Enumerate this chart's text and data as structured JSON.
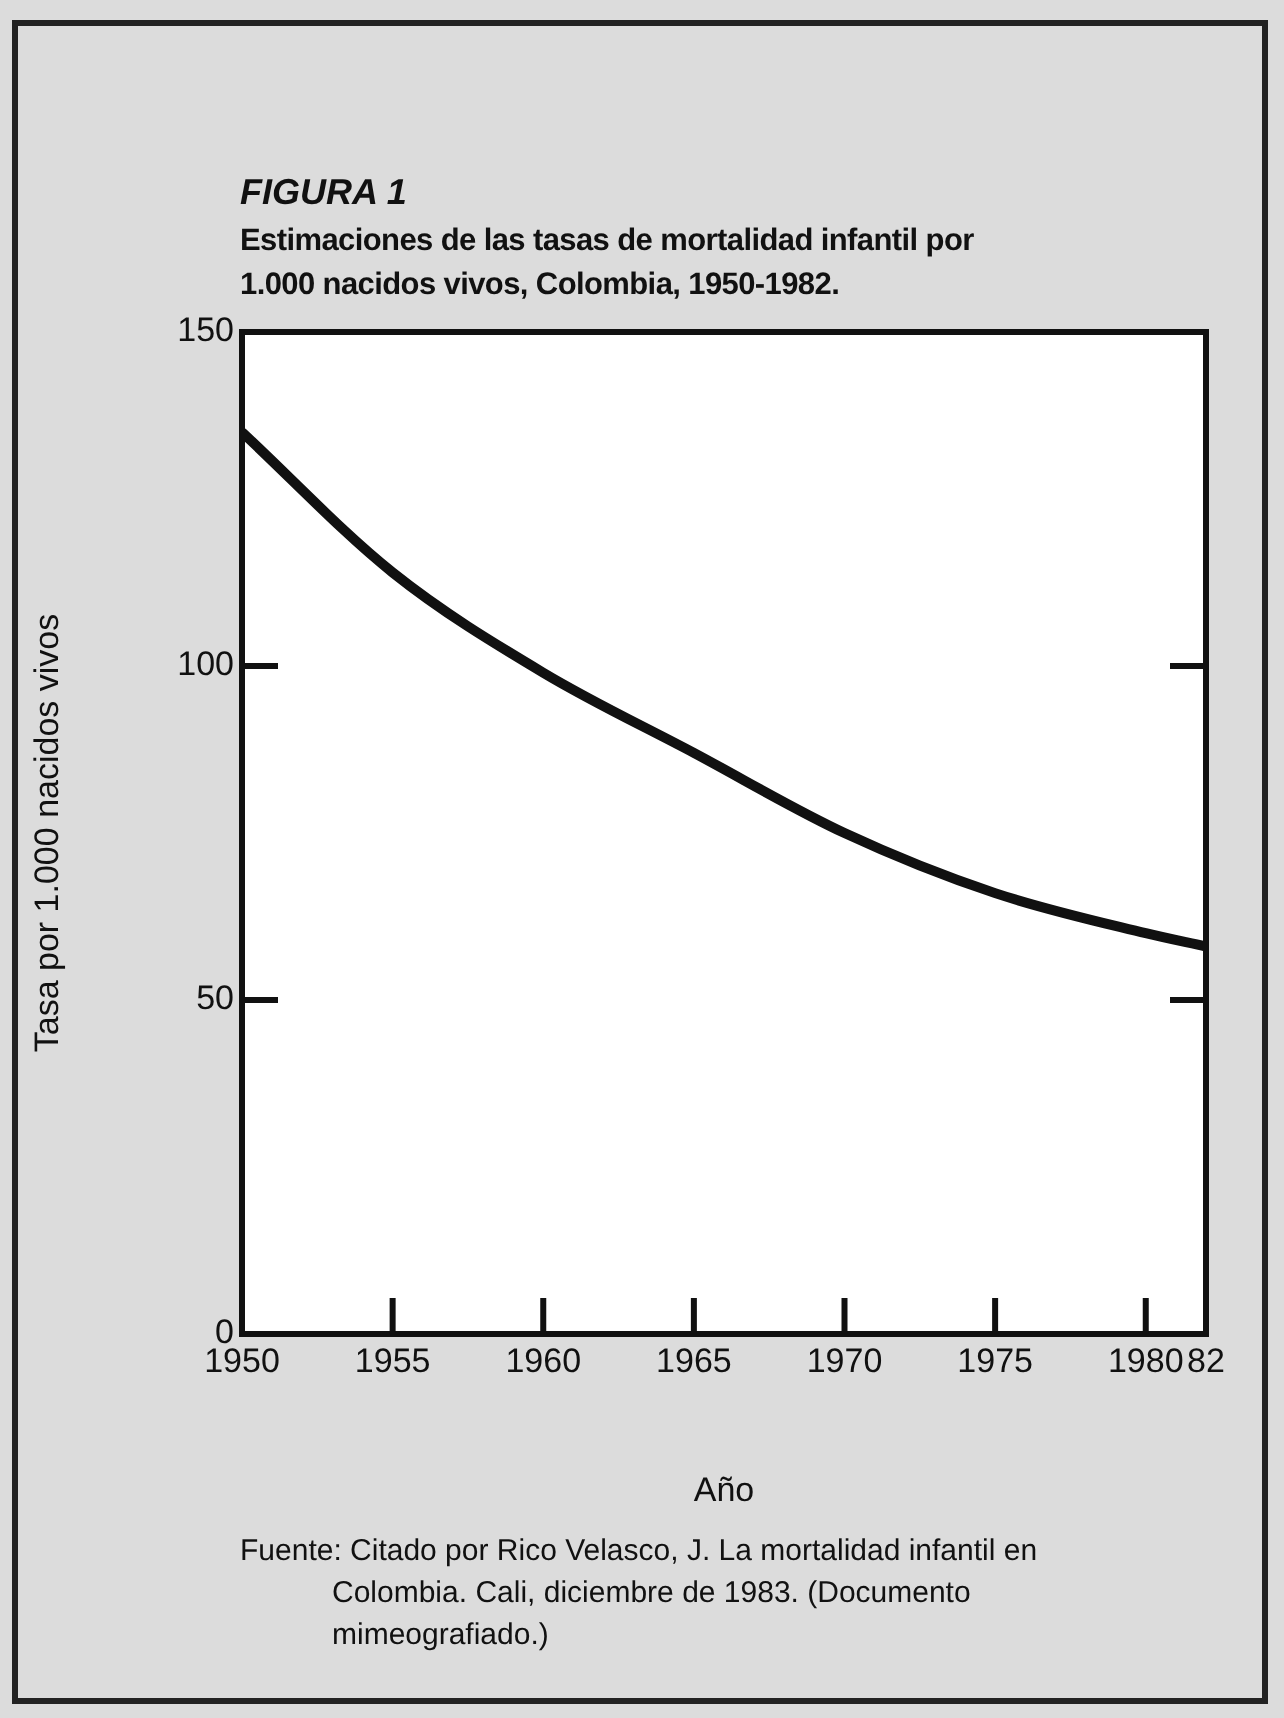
{
  "chart_data": {
    "type": "line",
    "title": "FIGURA 1",
    "subtitle": "Estimaciones de las tasas de mortalidad infantil por 1.000 nacidos vivos, Colombia, 1950-1982.",
    "xlabel": "Año",
    "ylabel": "Tasa por 1.000 nacidos vivos",
    "annotations": [
      "Fuente: Citado por Rico Velasco, J. La mortalidad infantil en Colombia. Cali, diciembre de 1983. (Documento mimeografiado.)"
    ],
    "x": [
      1950,
      1955,
      1960,
      1965,
      1970,
      1975,
      1980,
      1982
    ],
    "series": [
      {
        "color": "#111111",
        "values": [
          135,
          114,
          99,
          87,
          75,
          66,
          60,
          58
        ]
      }
    ],
    "xlim": [
      1950,
      1982
    ],
    "xticks": [
      1950,
      1955,
      1960,
      1965,
      1970,
      1975,
      1980,
      {
        "value": 1982,
        "label": "82"
      }
    ],
    "ylim": [
      0,
      150
    ],
    "yticks": [
      0,
      50,
      100,
      150
    ],
    "marker": "none",
    "line_style": "solid"
  }
}
